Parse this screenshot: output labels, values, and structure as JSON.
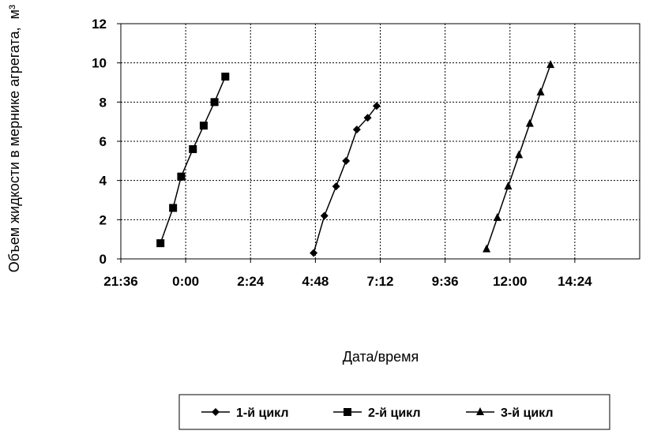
{
  "chart_data": {
    "type": "line",
    "xlabel": "Дата/время",
    "ylabel": "Объем жидкости в мернике агрегата,",
    "ylabel_unit": "м³",
    "x_ticks": [
      "21:36",
      "0:00",
      "2:24",
      "4:48",
      "7:12",
      "9:36",
      "12:00",
      "14:24"
    ],
    "x_tick_minutes": [
      -144,
      0,
      144,
      288,
      432,
      576,
      720,
      864
    ],
    "xlim_minutes": [
      -144,
      1008
    ],
    "y_ticks": [
      "0",
      "2",
      "4",
      "6",
      "8",
      "10",
      "12"
    ],
    "ylim": [
      0,
      12
    ],
    "grid": true,
    "legend_position": "bottom",
    "series": [
      {
        "name": "1-й цикл",
        "marker": "diamond",
        "x": [
          "4:44",
          "5:08",
          "5:34",
          "5:56",
          "6:20",
          "6:44",
          "7:04"
        ],
        "x_minutes": [
          284,
          308,
          334,
          356,
          380,
          404,
          424
        ],
        "y": [
          0.3,
          2.2,
          3.7,
          5.0,
          6.6,
          7.2,
          7.8
        ]
      },
      {
        "name": "2-й цикл",
        "marker": "square",
        "x": [
          "23:04",
          "23:32",
          "23:50",
          "0:16",
          "0:40",
          "1:04",
          "1:28"
        ],
        "x_minutes": [
          -56,
          -28,
          -10,
          16,
          40,
          64,
          88
        ],
        "y": [
          0.8,
          2.6,
          4.2,
          5.6,
          6.8,
          8.0,
          9.3
        ]
      },
      {
        "name": "3-й цикл",
        "marker": "triangle",
        "x": [
          "11:08",
          "11:32",
          "11:56",
          "12:20",
          "12:44",
          "13:08",
          "13:30"
        ],
        "x_minutes": [
          668,
          692,
          716,
          740,
          764,
          788,
          810
        ],
        "y": [
          0.5,
          2.1,
          3.7,
          5.3,
          6.9,
          8.5,
          9.9
        ]
      }
    ]
  }
}
